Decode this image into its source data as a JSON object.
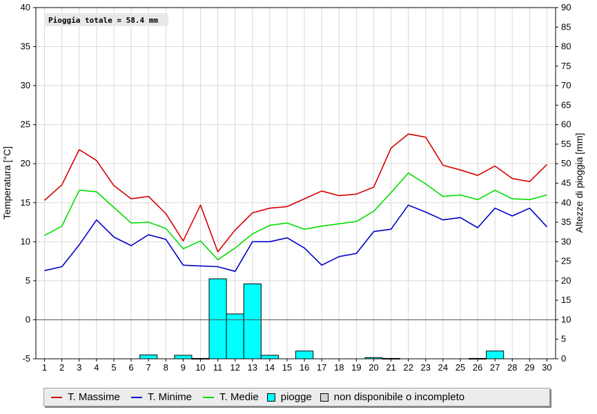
{
  "chart_data": {
    "type": "line",
    "annotation": "Pioggia totale = 58.4 mm",
    "ylabel_left": "Temperatura [°C]",
    "ylabel_right": "Altezze di pioggia [mm]",
    "ylim_left": [
      -5,
      40
    ],
    "ylim_right": [
      0,
      90
    ],
    "yticks_left": [
      "-5",
      "0",
      "5",
      "10",
      "15",
      "20",
      "25",
      "30",
      "35",
      "40"
    ],
    "yticks_right": [
      "0",
      "5",
      "10",
      "15",
      "20",
      "25",
      "30",
      "35",
      "40",
      "45",
      "50",
      "55",
      "60",
      "65",
      "70",
      "75",
      "80",
      "85",
      "90"
    ],
    "grid": true,
    "legend_position": "bottom",
    "x": [
      "1",
      "2",
      "3",
      "4",
      "5",
      "6",
      "7",
      "8",
      "9",
      "10",
      "11",
      "12",
      "13",
      "14",
      "15",
      "16",
      "17",
      "18",
      "19",
      "20",
      "21",
      "22",
      "23",
      "24",
      "25",
      "26",
      "27",
      "28",
      "29",
      "30"
    ],
    "series": [
      {
        "name": "T. Massime",
        "color": "#d40000",
        "values": [
          15.3,
          17.3,
          21.8,
          20.4,
          17.2,
          15.5,
          15.8,
          13.6,
          10.1,
          14.7,
          8.7,
          11.5,
          13.7,
          14.3,
          14.5,
          15.5,
          16.5,
          15.9,
          16.1,
          17.0,
          22.0,
          23.8,
          23.4,
          19.8,
          19.2,
          18.5,
          19.7,
          18.1,
          17.7,
          19.9
        ]
      },
      {
        "name": "T. Minime",
        "color": "#0000c8",
        "values": [
          6.3,
          6.8,
          9.6,
          12.8,
          10.6,
          9.5,
          10.9,
          10.3,
          7.0,
          6.9,
          6.8,
          6.2,
          10.0,
          10.0,
          10.5,
          9.2,
          7.0,
          8.1,
          8.5,
          11.3,
          11.6,
          14.7,
          13.8,
          12.8,
          13.1,
          11.8,
          14.3,
          13.3,
          14.3,
          11.9
        ]
      },
      {
        "name": "T. Medie",
        "color": "#00dd00",
        "values": [
          10.8,
          12.0,
          16.6,
          16.4,
          14.4,
          12.4,
          12.5,
          11.7,
          9.1,
          10.1,
          7.7,
          9.2,
          11.0,
          12.1,
          12.4,
          11.6,
          12.0,
          12.3,
          12.6,
          13.9,
          16.3,
          18.8,
          17.4,
          15.8,
          16.0,
          15.4,
          16.6,
          15.5,
          15.4,
          16.0
        ]
      }
    ],
    "rain": {
      "name": "piogge",
      "color": "#00ffff",
      "unit": "mm",
      "values": [
        0,
        0,
        0,
        0,
        0,
        0,
        1.0,
        0,
        0.9,
        0.1,
        20.5,
        11.5,
        19.2,
        0.9,
        0,
        2.0,
        0,
        0,
        0,
        0.3,
        0.1,
        0,
        0,
        0,
        0,
        0.1,
        2.0,
        0,
        0,
        0
      ]
    },
    "missing_label": "non disponibile o incompleto",
    "missing_color": "#d4d4d4"
  }
}
